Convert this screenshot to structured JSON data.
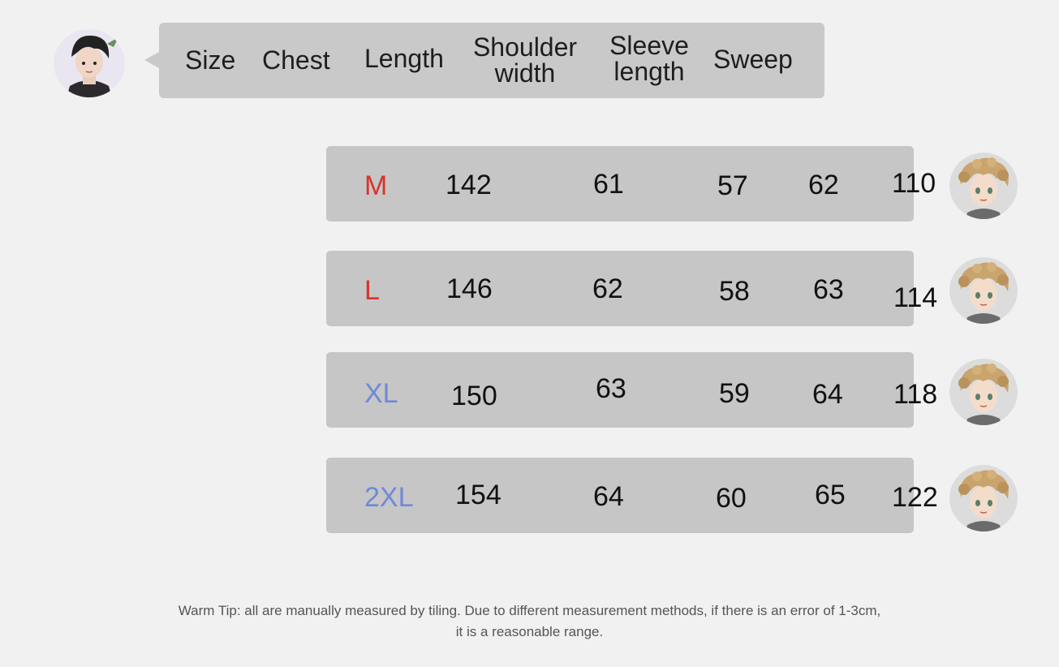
{
  "header": {
    "columns": [
      "Size",
      "Chest",
      "Length",
      "Shoulder width",
      "Sleeve length",
      "Sweep"
    ],
    "size": "Size",
    "chest": "Chest",
    "length": "Length",
    "shoulder_1": "Shoulder",
    "shoulder_2": "width",
    "sleeve_1": "Sleeve",
    "sleeve_2": "length",
    "sweep": "Sweep"
  },
  "rows": [
    {
      "size": "M",
      "size_color": "#d8342b",
      "chest": "142",
      "length": "61",
      "shoulder": "57",
      "sleeve": "62",
      "sweep": "110"
    },
    {
      "size": "L",
      "size_color": "#d8342b",
      "chest": "146",
      "length": "62",
      "shoulder": "58",
      "sleeve": "63",
      "sweep": "114"
    },
    {
      "size": "XL",
      "size_color": "#6f89d8",
      "chest": "150",
      "length": "63",
      "shoulder": "59",
      "sleeve": "64",
      "sweep": "118"
    },
    {
      "size": "2XL",
      "size_color": "#6f89d8",
      "chest": "154",
      "length": "64",
      "shoulder": "60",
      "sleeve": "65",
      "sweep": "122"
    }
  ],
  "tip": {
    "line1": "Warm Tip: all are manually measured by tiling. Due to different measurement methods, if there is an error of 1-3cm,",
    "line2": "it is a reasonable range."
  },
  "icons": {
    "header_avatar": "dark-haired-boy-avatar-icon",
    "row_avatar": "curly-haired-boy-avatar-icon"
  }
}
